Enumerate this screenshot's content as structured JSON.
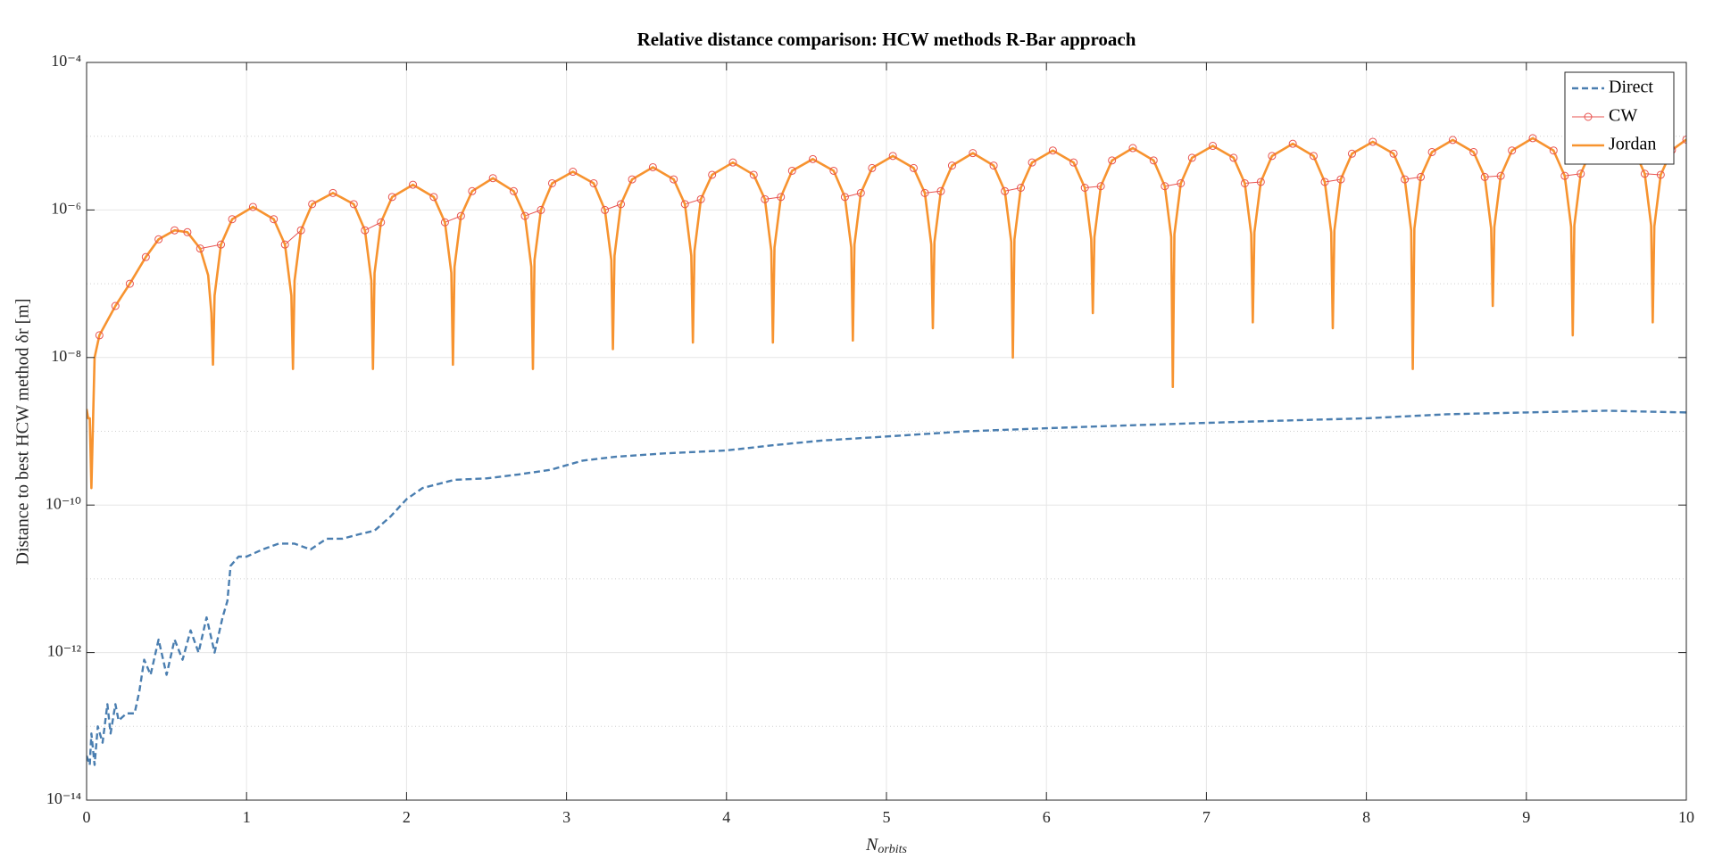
{
  "chart_data": {
    "type": "line",
    "title": "Relative distance comparison: HCW methods R-Bar approach",
    "xlabel": "N",
    "xlabel_subscript": "orbits",
    "ylabel": "Distance to best HCW method δr [m]",
    "xlim": [
      0,
      10
    ],
    "xticks": [
      0,
      1,
      2,
      3,
      4,
      5,
      6,
      7,
      8,
      9,
      10
    ],
    "ylim": [
      1e-14,
      0.0001
    ],
    "yscale": "log",
    "yticks": [
      {
        "value": 1e-14,
        "label": "10⁻¹⁴"
      },
      {
        "value": 1e-12,
        "label": "10⁻¹²"
      },
      {
        "value": 1e-10,
        "label": "10⁻¹⁰"
      },
      {
        "value": 1e-08,
        "label": "10⁻⁸"
      },
      {
        "value": 1e-06,
        "label": "10⁻⁶"
      },
      {
        "value": 0.0001,
        "label": "10⁻⁴"
      }
    ],
    "yminorgrid": [
      1e-13,
      1e-11,
      1e-09,
      1e-07,
      1e-05
    ],
    "grid": true,
    "legend": "upper right",
    "series": [
      {
        "name": "Direct",
        "color": "#4a7eb0",
        "style": "dashed",
        "x": [
          0,
          0.02,
          0.03,
          0.05,
          0.07,
          0.1,
          0.13,
          0.15,
          0.18,
          0.2,
          0.25,
          0.3,
          0.33,
          0.36,
          0.4,
          0.45,
          0.5,
          0.55,
          0.6,
          0.65,
          0.7,
          0.75,
          0.8,
          0.85,
          0.88,
          0.9,
          0.95,
          1,
          1.1,
          1.2,
          1.3,
          1.4,
          1.5,
          1.6,
          1.7,
          1.8,
          1.9,
          2,
          2.1,
          2.3,
          2.5,
          2.7,
          2.9,
          3.1,
          3.3,
          3.6,
          4,
          4.3,
          4.6,
          5,
          5.5,
          6,
          6.5,
          7,
          7.5,
          8,
          8.5,
          9,
          9.5,
          10
        ],
        "values": [
          4e-14,
          3e-14,
          8e-14,
          3e-14,
          1e-13,
          6e-14,
          2e-13,
          8e-14,
          2e-13,
          1.2e-13,
          1.5e-13,
          1.5e-13,
          3e-13,
          8e-13,
          5e-13,
          1.5e-12,
          5e-13,
          1.5e-12,
          8e-13,
          2e-12,
          1e-12,
          3e-12,
          1e-12,
          3e-12,
          5e-12,
          1.5e-11,
          2e-11,
          2e-11,
          2.5e-11,
          3e-11,
          3e-11,
          2.5e-11,
          3.5e-11,
          3.5e-11,
          4e-11,
          4.5e-11,
          7e-11,
          1.2e-10,
          1.7e-10,
          2.2e-10,
          2.3e-10,
          2.6e-10,
          3e-10,
          4e-10,
          4.5e-10,
          5e-10,
          5.5e-10,
          6.5e-10,
          7.5e-10,
          8.5e-10,
          1e-09,
          1.1e-09,
          1.2e-09,
          1.3e-09,
          1.4e-09,
          1.5e-09,
          1.7e-09,
          1.8e-09,
          1.9e-09,
          1.8e-09
        ]
      },
      {
        "name": "CW",
        "color": "#e8534f",
        "style": "marker",
        "x": [
          0.08,
          0.18,
          0.27,
          0.37,
          0.45,
          0.55,
          0.63,
          0.71,
          0.84,
          0.91,
          1.04,
          1.17,
          1.24,
          1.34,
          1.41,
          1.54,
          1.67,
          1.74,
          1.84,
          1.91,
          2.04,
          2.17,
          2.24,
          2.34,
          2.41,
          2.54,
          2.67,
          2.74,
          2.84,
          2.91,
          3.04,
          3.17,
          3.24,
          3.34,
          3.41,
          3.54,
          3.67,
          3.74,
          3.84,
          3.91,
          4.04,
          4.17,
          4.24,
          4.34,
          4.41,
          4.54,
          4.67,
          4.74,
          4.84,
          4.91,
          5.04,
          5.17,
          5.24,
          5.34,
          5.41,
          5.54,
          5.67,
          5.74,
          5.84,
          5.91,
          6.04,
          6.17,
          6.24,
          6.34,
          6.41,
          6.54,
          6.67,
          6.74,
          6.84,
          6.91,
          7.04,
          7.17,
          7.24,
          7.34,
          7.41,
          7.54,
          7.67,
          7.74,
          7.84,
          7.91,
          8.04,
          8.17,
          8.24,
          8.34,
          8.41,
          8.54,
          8.67,
          8.74,
          8.84,
          8.91,
          9.04,
          9.17,
          9.24,
          9.34,
          9.41,
          9.54,
          9.67,
          9.74,
          9.84,
          9.91,
          10
        ],
        "values": [
          2e-08,
          5e-08,
          1e-07,
          2.3e-07,
          4e-07,
          5.3e-07,
          5e-07,
          3e-07,
          3.4e-07,
          7.5e-07,
          1.1e-06,
          7.5e-07,
          3.4e-07,
          5.3e-07,
          1.2e-06,
          1.7e-06,
          1.2e-06,
          5.3e-07,
          6.8e-07,
          1.5e-06,
          2.2e-06,
          1.5e-06,
          6.8e-07,
          8.3e-07,
          1.8e-06,
          2.7e-06,
          1.8e-06,
          8.3e-07,
          1e-06,
          2.3e-06,
          3.3e-06,
          2.3e-06,
          1e-06,
          1.2e-06,
          2.6e-06,
          3.8e-06,
          2.6e-06,
          1.2e-06,
          1.4e-06,
          3e-06,
          4.4e-06,
          3e-06,
          1.4e-06,
          1.5e-06,
          3.4e-06,
          4.9e-06,
          3.4e-06,
          1.5e-06,
          1.7e-06,
          3.7e-06,
          5.4e-06,
          3.7e-06,
          1.7e-06,
          1.8e-06,
          4e-06,
          5.9e-06,
          4e-06,
          1.8e-06,
          2e-06,
          4.4e-06,
          6.4e-06,
          4.4e-06,
          2e-06,
          2.1e-06,
          4.7e-06,
          6.9e-06,
          4.7e-06,
          2.1e-06,
          2.3e-06,
          5.1e-06,
          7.4e-06,
          5.1e-06,
          2.3e-06,
          2.4e-06,
          5.4e-06,
          7.9e-06,
          5.4e-06,
          2.4e-06,
          2.6e-06,
          5.8e-06,
          8.4e-06,
          5.8e-06,
          2.6e-06,
          2.8e-06,
          6.1e-06,
          8.9e-06,
          6.1e-06,
          2.8e-06,
          2.9e-06,
          6.4e-06,
          9.4e-06,
          6.4e-06,
          2.9e-06,
          3.1e-06,
          6.8e-06,
          9.9e-06,
          6.8e-06,
          3.1e-06,
          3e-06,
          6.5e-06,
          9e-06
        ]
      },
      {
        "name": "Jordan",
        "color": "#f7932f",
        "style": "solid",
        "x": [
          0,
          0.01,
          0.02,
          0.03,
          0.05,
          0.08,
          0.18,
          0.27,
          0.37,
          0.45,
          0.55,
          0.63,
          0.71,
          0.76,
          0.78,
          0.79,
          0.8,
          0.84,
          0.91,
          1.04,
          1.17,
          1.24,
          1.28,
          1.29,
          1.3,
          1.34,
          1.41,
          1.54,
          1.67,
          1.74,
          1.78,
          1.79,
          1.8,
          1.84,
          1.91,
          2.04,
          2.17,
          2.24,
          2.28,
          2.29,
          2.3,
          2.34,
          2.41,
          2.54,
          2.67,
          2.74,
          2.78,
          2.79,
          2.8,
          2.84,
          2.91,
          3.04,
          3.17,
          3.24,
          3.28,
          3.29,
          3.3,
          3.34,
          3.41,
          3.54,
          3.67,
          3.74,
          3.78,
          3.79,
          3.8,
          3.84,
          3.91,
          4.04,
          4.17,
          4.24,
          4.28,
          4.29,
          4.3,
          4.34,
          4.41,
          4.54,
          4.67,
          4.74,
          4.78,
          4.79,
          4.8,
          4.84,
          4.91,
          5.04,
          5.17,
          5.24,
          5.28,
          5.29,
          5.3,
          5.34,
          5.41,
          5.54,
          5.67,
          5.74,
          5.78,
          5.79,
          5.8,
          5.84,
          5.91,
          6.04,
          6.17,
          6.24,
          6.28,
          6.29,
          6.3,
          6.34,
          6.41,
          6.54,
          6.67,
          6.74,
          6.78,
          6.79,
          6.8,
          6.84,
          6.91,
          7.04,
          7.17,
          7.24,
          7.28,
          7.29,
          7.3,
          7.34,
          7.41,
          7.54,
          7.67,
          7.74,
          7.78,
          7.79,
          7.8,
          7.84,
          7.91,
          8.04,
          8.17,
          8.24,
          8.28,
          8.29,
          8.3,
          8.34,
          8.41,
          8.54,
          8.67,
          8.74,
          8.78,
          8.79,
          8.8,
          8.84,
          8.91,
          9.04,
          9.17,
          9.24,
          9.28,
          9.29,
          9.3,
          9.34,
          9.41,
          9.54,
          9.67,
          9.74,
          9.78,
          9.79,
          9.8,
          9.84,
          9.91,
          10
        ],
        "values": [
          2e-09,
          1.5e-09,
          1.5e-09,
          1.7e-10,
          1e-08,
          2e-08,
          5e-08,
          1e-07,
          2.3e-07,
          4e-07,
          5.3e-07,
          5e-07,
          3e-07,
          1.3e-07,
          4e-08,
          8e-09,
          6.9e-08,
          3.4e-07,
          7.5e-07,
          1.1e-06,
          7.5e-07,
          3.4e-07,
          6.9e-08,
          7e-09,
          1.1e-07,
          5.3e-07,
          1.2e-06,
          1.7e-06,
          1.2e-06,
          5.3e-07,
          1.1e-07,
          7e-09,
          1.4e-07,
          6.8e-07,
          1.5e-06,
          2.2e-06,
          1.5e-06,
          6.8e-07,
          1.4e-07,
          8e-09,
          1.7e-07,
          8.3e-07,
          1.8e-06,
          2.7e-06,
          1.8e-06,
          8.3e-07,
          1.7e-07,
          7e-09,
          2.1e-07,
          1e-06,
          2.3e-06,
          3.3e-06,
          2.3e-06,
          1e-06,
          2.1e-07,
          1.3e-08,
          2.4e-07,
          1.2e-06,
          2.6e-06,
          3.8e-06,
          2.6e-06,
          1.2e-06,
          2.4e-07,
          1.6e-08,
          2.8e-07,
          1.4e-06,
          3e-06,
          4.4e-06,
          3e-06,
          1.4e-06,
          2.8e-07,
          1.6e-08,
          3.1e-07,
          1.5e-06,
          3.4e-06,
          4.9e-06,
          3.4e-06,
          1.5e-06,
          3.1e-07,
          1.7e-08,
          3.4e-07,
          1.7e-06,
          3.7e-06,
          5.4e-06,
          3.7e-06,
          1.7e-06,
          3.4e-07,
          2.5e-08,
          3.7e-07,
          1.8e-06,
          4e-06,
          5.9e-06,
          4e-06,
          1.8e-06,
          3.7e-07,
          1e-08,
          4e-07,
          2e-06,
          4.4e-06,
          6.4e-06,
          4.4e-06,
          2e-06,
          4e-07,
          4e-08,
          4.3e-07,
          2.1e-06,
          4.7e-06,
          6.9e-06,
          4.7e-06,
          2.1e-06,
          4.3e-07,
          4e-09,
          4.7e-07,
          2.3e-06,
          5.1e-06,
          7.4e-06,
          5.1e-06,
          2.3e-06,
          4.7e-07,
          3e-08,
          5e-07,
          2.4e-06,
          5.4e-06,
          7.9e-06,
          5.4e-06,
          2.4e-06,
          5e-07,
          2.5e-08,
          5.3e-07,
          2.6e-06,
          5.8e-06,
          8.4e-06,
          5.8e-06,
          2.6e-06,
          5.3e-07,
          7e-09,
          5.6e-07,
          2.8e-06,
          6.1e-06,
          8.9e-06,
          6.1e-06,
          2.8e-06,
          5.6e-07,
          5e-08,
          5.9e-07,
          2.9e-06,
          6.4e-06,
          9.4e-06,
          6.4e-06,
          2.9e-06,
          5.9e-07,
          2e-08,
          6.2e-07,
          3.1e-06,
          6.8e-06,
          9.9e-06,
          6.8e-06,
          3.1e-06,
          6.2e-07,
          3e-08,
          6e-07,
          3e-06,
          6.5e-06,
          9e-06
        ]
      }
    ]
  }
}
